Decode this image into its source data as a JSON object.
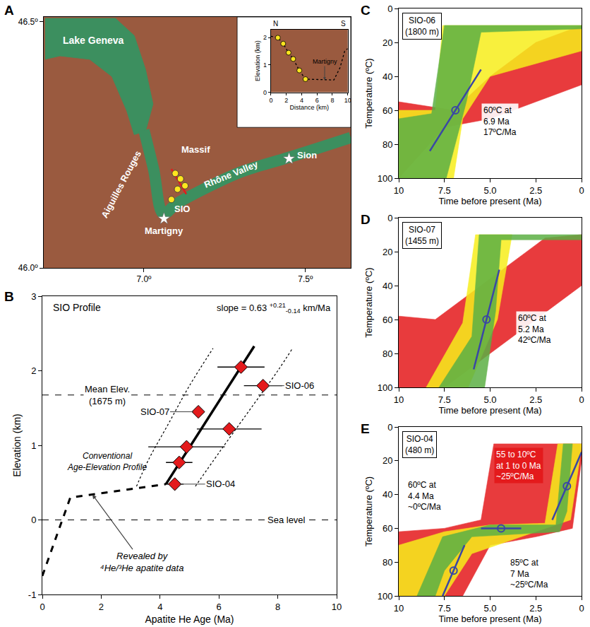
{
  "chart_data": [
    {
      "type": "map",
      "panel": "A",
      "color": "#9a5a3f",
      "xlim": [
        6.69,
        7.64
      ],
      "ylim": [
        46.0,
        46.51
      ],
      "xticks": [
        {
          "value": 7.0,
          "label": "7.0º"
        },
        {
          "value": 7.5,
          "label": "7.5º"
        }
      ],
      "yticks": [
        {
          "value": 46.0,
          "label": "46.0º"
        },
        {
          "value": 46.5,
          "label": "46.5º"
        }
      ],
      "lake": {
        "color": "#3c8f5f",
        "lon": [
          6.694,
          6.912,
          6.97,
          7.005,
          7.028,
          7.005,
          6.97,
          6.947,
          6.901,
          6.832,
          6.74,
          6.694
        ],
        "lat": [
          46.507,
          46.507,
          46.472,
          46.403,
          46.333,
          46.278,
          46.271,
          46.319,
          46.389,
          46.424,
          46.431,
          46.424
        ]
      },
      "valley": {
        "color": "#3c8f5f",
        "lon": [
          7.0,
          7.03,
          7.06,
          7.1,
          7.2,
          7.3,
          7.45,
          7.64
        ],
        "lat": [
          46.28,
          46.2,
          46.11,
          46.13,
          46.165,
          46.195,
          46.225,
          46.265
        ]
      },
      "profile_line": {
        "color": "#e41a1c",
        "lon": [
          7.085,
          7.131
        ],
        "lat": [
          46.201,
          46.15
        ]
      },
      "samples": {
        "color": "#ffe51f",
        "marker": "circle",
        "lon": [
          7.097,
          7.113,
          7.127,
          7.104,
          7.085
        ],
        "lat": [
          46.192,
          46.181,
          46.167,
          46.16,
          46.139
        ]
      },
      "places": [
        {
          "text": "Sion",
          "lon": 7.449,
          "lat": 46.222,
          "marker": "star"
        },
        {
          "text": "Martigny",
          "lon": 7.062,
          "lat": 46.1,
          "marker": "star"
        }
      ],
      "labels": [
        {
          "text": "Lake Geneva",
          "lon": 6.843,
          "lat": 46.462
        },
        {
          "text": "Massif",
          "lon": 7.16,
          "lat": 46.24
        },
        {
          "text": "Aiguilles Rouges",
          "lon": 6.93,
          "lat": 46.17
        },
        {
          "text": "Rhône Valley",
          "lon": 7.27,
          "lat": 46.19
        },
        {
          "text": "SIO",
          "lon": 7.118,
          "lat": 46.12
        }
      ],
      "inset": {
        "type": "line",
        "xlim": [
          0,
          10
        ],
        "ylim": [
          0,
          2.3
        ],
        "xticks": [
          0,
          2,
          4,
          6,
          8,
          10
        ],
        "yticks": [
          0,
          1,
          2
        ],
        "x_label": "Distance (km)",
        "y_label": "Elevation (km)",
        "ends": [
          "N",
          "S"
        ],
        "profile": {
          "color": "#000000",
          "line_style": "dot",
          "x": [
            0,
            0.9,
            1.6,
            2.3,
            2.9,
            3.7,
            4.5,
            7.0,
            8.2,
            9.0,
            9.6,
            10
          ],
          "y": [
            2.05,
            2.0,
            1.78,
            1.45,
            1.22,
            0.8,
            0.48,
            0.45,
            0.45,
            0.9,
            1.5,
            1.6
          ]
        },
        "samples": {
          "color": "#ffe51f",
          "marker": "circle",
          "x": [
            0.9,
            1.6,
            2.3,
            2.9,
            3.7,
            4.5
          ],
          "y": [
            2.0,
            1.78,
            1.45,
            1.22,
            0.8,
            0.48
          ]
        },
        "place": {
          "text": "Martigny",
          "x": 7.0,
          "y": 0.45
        }
      }
    },
    {
      "type": "scatter",
      "panel": "B",
      "title": "SIO Profile",
      "x_label": "Apatite He Age (Ma)",
      "y_label": "Elevation (km)",
      "xlim": [
        0,
        10
      ],
      "ylim": [
        -1,
        3
      ],
      "xticks": [
        0,
        2,
        4,
        6,
        8,
        10
      ],
      "yticks": [
        -1,
        0,
        1,
        2,
        3
      ],
      "points": {
        "color": "#e41a1c",
        "marker": "diamond",
        "x": [
          6.75,
          7.5,
          5.3,
          6.35,
          4.9,
          4.65,
          4.5
        ],
        "y": [
          2.05,
          1.8,
          1.45,
          1.22,
          0.98,
          0.77,
          0.48
        ],
        "x_error": [
          0.8,
          0.65,
          null,
          1.1,
          1.3,
          0.45,
          0.3
        ],
        "labels": [
          null,
          "SIO-06",
          "SIO-07",
          null,
          null,
          null,
          "SIO-04"
        ]
      },
      "fit": {
        "line_style": "solid",
        "x": [
          4.2,
          7.2
        ],
        "y": [
          0.48,
          2.33
        ],
        "label": "slope = 0.63",
        "error_labels": [
          "+0.21",
          "-0.14"
        ],
        "unit": "km/Ma"
      },
      "inferred": {
        "line_style": "dash",
        "x": [
          0,
          0.95,
          4.2
        ],
        "y": [
          -0.75,
          0.3,
          0.48
        ],
        "label": [
          "Revealed by",
          "⁴He/³He apatite data"
        ]
      },
      "envelope": [
        {
          "line_style": "dot",
          "x": [
            3.2,
            3.6,
            4.3,
            5.0,
            5.8
          ],
          "y": [
            0.45,
            0.8,
            1.3,
            1.8,
            2.3
          ]
        },
        {
          "line_style": "dot",
          "x": [
            5.2,
            6.0,
            7.0,
            8.0,
            8.5
          ],
          "y": [
            0.45,
            0.9,
            1.45,
            2.0,
            2.3
          ]
        }
      ],
      "reference_lines": [
        {
          "line_style": "dash",
          "y": 1.675,
          "label": [
            "Mean Elev.",
            "(1675 m)"
          ]
        },
        {
          "line_style": "dash",
          "y": 0,
          "label": [
            "Sea level"
          ]
        }
      ],
      "notes": [
        [
          "Conventional",
          "Age-Elevation Profile"
        ]
      ]
    },
    {
      "type": "line",
      "panel": "C",
      "title": [
        "SIO-06",
        "(1800 m)"
      ],
      "x_label": "Time before present (Ma)",
      "y_label": "Temperature (ºC)",
      "xlim": [
        10,
        0
      ],
      "ylim": [
        100,
        0
      ],
      "xticks": [
        10,
        7.5,
        {
          "value": 5,
          "label": "5.0"
        },
        2.5,
        0
      ],
      "yticks": [
        0,
        20,
        40,
        60,
        80,
        100
      ],
      "envelopes": [
        {
          "color": "#e41a1c",
          "x": [
            10,
            7,
            5,
            2.5,
            0,
            0,
            2.5,
            5,
            7.5,
            10
          ],
          "y": [
            55,
            60,
            40,
            20,
            10,
            45,
            55,
            65,
            70,
            100
          ]
        },
        {
          "color": "#f7ee1c",
          "x": [
            10,
            8,
            7.6,
            0,
            0,
            5,
            6.5,
            7,
            10
          ],
          "y": [
            60,
            60,
            10,
            10,
            25,
            40,
            65,
            100,
            100
          ]
        },
        {
          "color": "#5cb045",
          "x": [
            10,
            8.2,
            7.5,
            0,
            0,
            5.5,
            6.3,
            6.8,
            7.4,
            10
          ],
          "y": [
            65,
            62,
            10,
            10,
            12,
            14,
            55,
            75,
            100,
            100
          ]
        }
      ],
      "constraints": [
        {
          "x": [
            8.3,
            5.5
          ],
          "y": [
            84,
            36
          ],
          "point": [
            6.9,
            60
          ],
          "label": [
            "60ºC at",
            "6.9 Ma",
            "17ºC/Ma"
          ]
        }
      ]
    },
    {
      "type": "line",
      "panel": "D",
      "title": [
        "SIO-07",
        "(1455 m)"
      ],
      "x_label": "Time before present (Ma)",
      "y_label": "Temperature (ºC)",
      "xlim": [
        10,
        0
      ],
      "ylim": [
        100,
        0
      ],
      "xticks": [
        10,
        7.5,
        {
          "value": 5,
          "label": "5.0"
        },
        2.5,
        0
      ],
      "yticks": [
        0,
        20,
        40,
        60,
        80,
        100
      ],
      "envelopes": [
        {
          "color": "#e41a1c",
          "x": [
            10,
            8,
            5.5,
            2,
            0,
            0,
            2.5,
            5,
            7.5,
            10
          ],
          "y": [
            58,
            60,
            40,
            12,
            10,
            40,
            60,
            80,
            100,
            100
          ]
        },
        {
          "color": "#f7ee1c",
          "x": [
            8.5,
            6.5,
            5.8,
            3.8,
            4.6,
            6.2
          ],
          "y": [
            100,
            62,
            10,
            10,
            60,
            100
          ]
        },
        {
          "color": "#5cb045",
          "x": [
            7.8,
            6.0,
            5.6,
            0,
            0,
            4.4,
            4.7,
            5.3
          ],
          "y": [
            100,
            70,
            10,
            10,
            13,
            13,
            55,
            100
          ]
        }
      ],
      "constraints": [
        {
          "x": [
            5.9,
            4.5
          ],
          "y": [
            89.4,
            30.6
          ],
          "point": [
            5.2,
            60
          ],
          "label": [
            "60ºC at",
            "5.2 Ma",
            "42ºC/Ma"
          ]
        }
      ]
    },
    {
      "type": "line",
      "panel": "E",
      "title": [
        "SIO-04",
        "(480 m)"
      ],
      "x_label": "Time before present (Ma)",
      "y_label": "Temperature (ºC)",
      "xlim": [
        10,
        0
      ],
      "ylim": [
        100,
        0
      ],
      "xticks": [
        10,
        7.5,
        {
          "value": 5,
          "label": "5.0"
        },
        2.5,
        0
      ],
      "yticks": [
        0,
        20,
        40,
        60,
        80,
        100
      ],
      "envelopes": [
        {
          "color": "#e41a1c",
          "x": [
            10,
            7.5,
            5.5,
            4.8,
            0,
            0,
            0.5,
            2.5,
            5,
            6.5,
            10
          ],
          "y": [
            62,
            60,
            55,
            10,
            10,
            20,
            60,
            65,
            70,
            100,
            100
          ]
        },
        {
          "color": "#f7ee1c",
          "x": [
            10,
            7.5,
            5,
            2,
            1.3,
            0,
            0,
            0.6,
            2.5,
            6,
            7.5,
            10
          ],
          "y": [
            70,
            62,
            58,
            57,
            10,
            10,
            12,
            55,
            62,
            75,
            100,
            100
          ]
        },
        {
          "color": "#5cb045",
          "x": [
            9,
            7.6,
            5,
            1.4,
            1.0,
            0.5,
            0.8,
            1.2,
            6,
            7.5,
            8
          ],
          "y": [
            100,
            65,
            58,
            58,
            10,
            10,
            50,
            62,
            65,
            85,
            100
          ]
        }
      ],
      "constraints": [
        {
          "x": [
            7.6,
            6.4
          ],
          "y": [
            100,
            70
          ],
          "point": [
            7,
            85
          ],
          "label": [
            "85ºC at",
            "7 Ma",
            "~25ºC/Ma"
          ]
        },
        {
          "x": [
            5.5,
            3.3
          ],
          "y": [
            60,
            60
          ],
          "point": [
            4.4,
            60
          ],
          "label": [
            "60ºC at",
            "4.4 Ma",
            "~0ºC/Ma"
          ]
        },
        {
          "x": [
            1.6,
            0
          ],
          "y": [
            55,
            15
          ],
          "point": [
            0.8,
            35
          ],
          "label": [
            "55 to 10ºC",
            "at 1 to 0 Ma",
            "~25ºC/Ma"
          ],
          "color": "#e41a1c"
        }
      ]
    }
  ]
}
